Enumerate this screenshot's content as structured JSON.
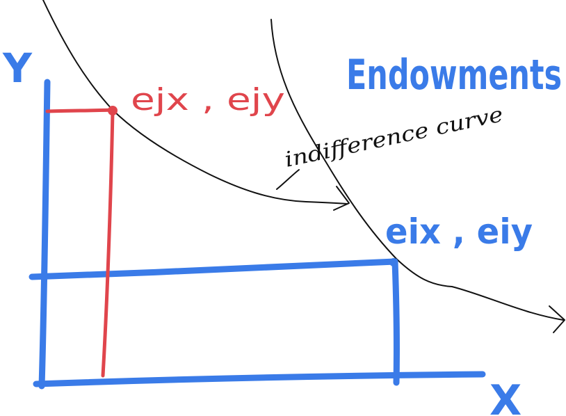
{
  "title": "Endowments",
  "axes": {
    "y_label": "Y",
    "x_label": "X"
  },
  "labels": {
    "endowment_j": "ejx , ejy",
    "endowment_i": "eix , eiy",
    "curve_annotation": "indifference curve"
  },
  "colors": {
    "blue": "#3a7be8",
    "red": "#e0454c",
    "black": "#111111"
  }
}
